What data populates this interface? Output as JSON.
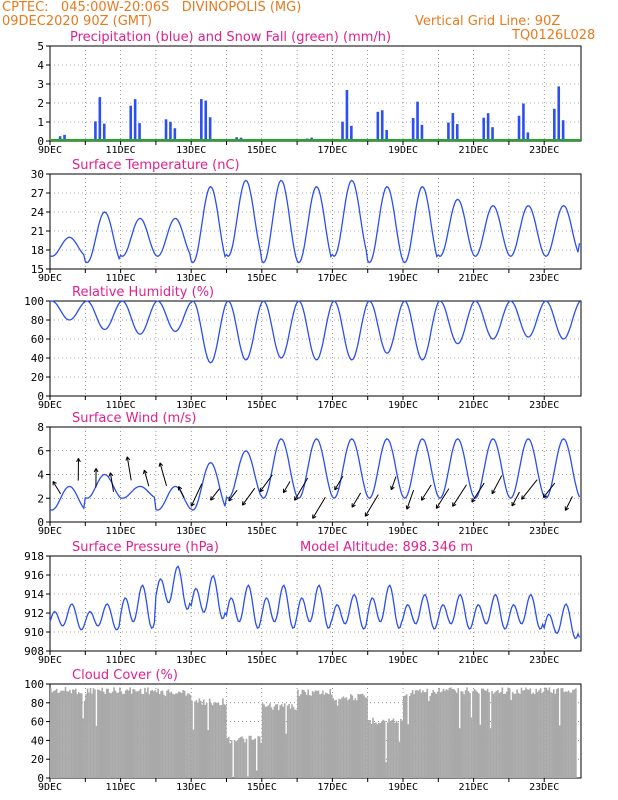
{
  "header": {
    "line1": "CPTEC:   045:00W-20:06S   DIVINOPOLIS (MG)",
    "line2_left": "09DEC2020 90Z (GMT)",
    "line2_right": "Vertical Grid Line: 90Z",
    "line3_right": "TQ0126L028"
  },
  "colors": {
    "series": "#2b4ff0",
    "snow": "#22aa22",
    "cloud": "#a9a9a9",
    "title": "#e0208e",
    "header": "#e87a1e"
  },
  "x_labels": [
    "9DEC",
    "11DEC",
    "13DEC",
    "15DEC",
    "17DEC",
    "19DEC",
    "21DEC",
    "23DEC"
  ],
  "chart_data": [
    {
      "type": "bar",
      "title": "Precipitation (blue) and Snow Fall (green) (mm/h)",
      "ylim": [
        0,
        5
      ],
      "yticks": [
        "0",
        "1",
        "2",
        "3",
        "4",
        "5"
      ],
      "x": [
        "9DEC",
        "10DEC",
        "11DEC",
        "12DEC",
        "13DEC",
        "14DEC",
        "15DEC",
        "16DEC",
        "17DEC",
        "18DEC",
        "19DEC",
        "20DEC",
        "21DEC",
        "22DEC",
        "23DEC",
        "24DEC"
      ],
      "series": [
        {
          "name": "Precipitation",
          "values": [
            0.4,
            2.6,
            2.3,
            1.6,
            3.5,
            0.3,
            0.1,
            0.2,
            2.4,
            2.2,
            2.2,
            2.1,
            2.1,
            2.0,
            2.6,
            1.8
          ]
        },
        {
          "name": "Snow Fall",
          "values": [
            0,
            0,
            0,
            0,
            0,
            0,
            0,
            0,
            0,
            0,
            0,
            0,
            0,
            0,
            0,
            0
          ]
        }
      ]
    },
    {
      "type": "line",
      "title": "Surface Temperature (nC)",
      "ylim": [
        15,
        30
      ],
      "yticks": [
        "15",
        "18",
        "21",
        "24",
        "27",
        "30"
      ],
      "x": [
        "9DEC",
        "10DEC",
        "11DEC",
        "12DEC",
        "13DEC",
        "14DEC",
        "15DEC",
        "16DEC",
        "17DEC",
        "18DEC",
        "19DEC",
        "20DEC",
        "21DEC",
        "22DEC",
        "23DEC",
        "24DEC"
      ],
      "series": [
        {
          "max": [
            20,
            24,
            23,
            23,
            28,
            29,
            29,
            28,
            29,
            28,
            28,
            26,
            25,
            25,
            25,
            22
          ],
          "min": [
            17,
            16,
            17,
            17,
            16,
            17,
            16,
            16,
            17,
            16,
            16,
            17,
            17,
            17,
            17,
            19
          ]
        }
      ]
    },
    {
      "type": "line",
      "title": "Relative Humidity (%)",
      "ylim": [
        0,
        100
      ],
      "yticks": [
        "0",
        "20",
        "40",
        "60",
        "80",
        "100"
      ],
      "x": [
        "9DEC",
        "10DEC",
        "11DEC",
        "12DEC",
        "13DEC",
        "14DEC",
        "15DEC",
        "16DEC",
        "17DEC",
        "18DEC",
        "19DEC",
        "20DEC",
        "21DEC",
        "22DEC",
        "23DEC",
        "24DEC"
      ],
      "series": [
        {
          "max": [
            100,
            100,
            100,
            100,
            100,
            100,
            100,
            100,
            100,
            100,
            100,
            100,
            100,
            100,
            100,
            100
          ],
          "min": [
            80,
            70,
            65,
            68,
            35,
            38,
            40,
            38,
            38,
            45,
            38,
            55,
            60,
            62,
            60,
            75
          ]
        }
      ]
    },
    {
      "type": "line",
      "title": "Surface Wind (m/s)",
      "ylim": [
        0,
        8
      ],
      "yticks": [
        "0",
        "2",
        "4",
        "6",
        "8"
      ],
      "x": [
        "9DEC",
        "10DEC",
        "11DEC",
        "12DEC",
        "13DEC",
        "14DEC",
        "15DEC",
        "16DEC",
        "17DEC",
        "18DEC",
        "19DEC",
        "20DEC",
        "21DEC",
        "22DEC",
        "23DEC",
        "24DEC"
      ],
      "series": [
        {
          "max": [
            3,
            4,
            3,
            3,
            5,
            6,
            7,
            7,
            7,
            7,
            7,
            7,
            7,
            7,
            7,
            6
          ],
          "min": [
            1,
            2,
            2,
            1,
            1,
            2,
            2,
            2,
            2,
            2,
            2,
            2,
            2,
            2,
            2,
            2
          ]
        }
      ]
    },
    {
      "type": "line",
      "title": "Surface Pressure (hPa)",
      "annotation": "Model Altitude: 898.346 m",
      "ylim": [
        908,
        918
      ],
      "yticks": [
        "908",
        "910",
        "912",
        "914",
        "916",
        "918"
      ],
      "x": [
        "9DEC",
        "10DEC",
        "11DEC",
        "12DEC",
        "13DEC",
        "14DEC",
        "15DEC",
        "16DEC",
        "17DEC",
        "18DEC",
        "19DEC",
        "20DEC",
        "21DEC",
        "22DEC",
        "23DEC",
        "24DEC"
      ],
      "series": [
        {
          "max": [
            913,
            913,
            915,
            917,
            916,
            915,
            915,
            915,
            914,
            915,
            914,
            914,
            914,
            914,
            913,
            912
          ],
          "min": [
            910,
            910,
            910,
            912,
            911,
            910,
            910,
            910,
            910,
            910,
            910,
            910,
            910,
            910,
            909,
            908
          ]
        }
      ]
    },
    {
      "type": "area",
      "title": "Cloud Cover (%)",
      "ylim": [
        0,
        100
      ],
      "yticks": [
        "0",
        "20",
        "40",
        "60",
        "80",
        "100"
      ],
      "x": [
        "9DEC",
        "10DEC",
        "11DEC",
        "12DEC",
        "13DEC",
        "14DEC",
        "15DEC",
        "16DEC",
        "17DEC",
        "18DEC",
        "19DEC",
        "20DEC",
        "21DEC",
        "22DEC",
        "23DEC",
        "24DEC"
      ],
      "values": [
        97,
        97,
        97,
        95,
        85,
        45,
        80,
        95,
        90,
        65,
        95,
        97,
        97,
        97,
        97,
        97
      ]
    }
  ]
}
